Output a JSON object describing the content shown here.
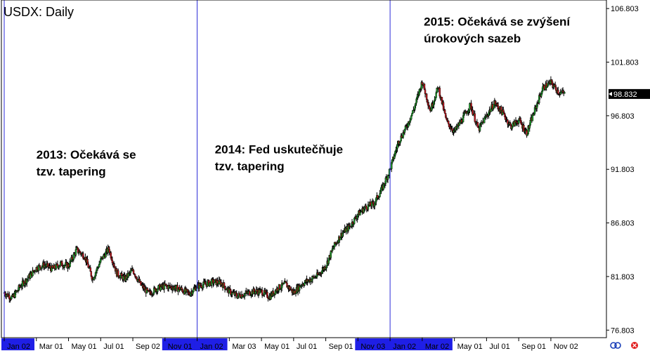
{
  "chart_data": {
    "type": "candlestick",
    "title": "USDX: Daily",
    "y_ticks": [
      "106.803",
      "101.803",
      "96.803",
      "91.803",
      "86.803",
      "81.803",
      "76.803"
    ],
    "y_values": [
      106.803,
      101.803,
      96.803,
      91.803,
      86.803,
      81.803,
      76.803
    ],
    "ylim": [
      76.1,
      107.6
    ],
    "x_ticks": [
      "Jan 02",
      "Mar 01",
      "May 01",
      "Jul 01",
      "Sep 02",
      "Nov 01",
      "Jan 02",
      "Mar 03",
      "May 01",
      "Jul 01",
      "Sep 01",
      "Nov 03",
      "Jan 02",
      "Mar 02",
      "May 01",
      "Jul 01",
      "Sep 01",
      "Nov 02"
    ],
    "x_tick_highlighted": [
      true,
      false,
      false,
      false,
      false,
      true,
      true,
      false,
      false,
      false,
      false,
      true,
      true,
      true,
      false,
      false,
      false,
      false
    ],
    "x_tick_positions_months": [
      0,
      2,
      4,
      6,
      8,
      10,
      12,
      14,
      16,
      18,
      20,
      22,
      24,
      26,
      28,
      30,
      32,
      34
    ],
    "xlim_months": [
      0,
      35.8
    ],
    "period_dividers": [
      "2013",
      "2014",
      "2015"
    ],
    "divider_months": [
      0,
      12,
      24
    ],
    "current_price": "98.832",
    "current_value": 98.832,
    "annotations": [
      {
        "line1": "2013: Očekává se",
        "line2": "tzv. tapering",
        "anchor_month": 2.0,
        "anchor_value": 92.8
      },
      {
        "line1": "2014: Fed uskutečňuje",
        "line2": "tzv. tapering",
        "anchor_month": 13.1,
        "anchor_value": 93.3
      },
      {
        "line1": "2015: Očekává se zvýšení",
        "line2": "úrokových sazeb",
        "anchor_month": 26.1,
        "anchor_value": 105.2
      }
    ],
    "series": [
      {
        "values": [
          [
            0,
            80.3
          ],
          [
            0.5,
            79.8
          ],
          [
            1,
            80.9
          ],
          [
            1.5,
            81.7
          ],
          [
            2,
            82.6
          ],
          [
            2.5,
            82.9
          ],
          [
            3,
            82.5
          ],
          [
            3.5,
            83.0
          ],
          [
            4,
            82.8
          ],
          [
            4.5,
            84.3
          ],
          [
            5,
            83.7
          ],
          [
            5.5,
            81.6
          ],
          [
            6,
            83.3
          ],
          [
            6.5,
            84.4
          ],
          [
            7,
            82.1
          ],
          [
            7.5,
            81.6
          ],
          [
            8,
            82.4
          ],
          [
            8.5,
            81.0
          ],
          [
            9,
            80.2
          ],
          [
            9.5,
            80.7
          ],
          [
            10,
            80.9
          ],
          [
            10.5,
            80.8
          ],
          [
            11,
            80.6
          ],
          [
            11.5,
            80.2
          ],
          [
            12,
            80.9
          ],
          [
            12.5,
            81.1
          ],
          [
            13,
            81.3
          ],
          [
            13.5,
            81.2
          ],
          [
            14,
            80.4
          ],
          [
            14.5,
            80.0
          ],
          [
            15,
            80.2
          ],
          [
            15.5,
            80.4
          ],
          [
            16,
            80.4
          ],
          [
            16.5,
            79.9
          ],
          [
            17,
            80.7
          ],
          [
            17.5,
            81.1
          ],
          [
            18,
            80.3
          ],
          [
            18.5,
            81.1
          ],
          [
            19,
            81.5
          ],
          [
            19.5,
            81.9
          ],
          [
            20,
            82.8
          ],
          [
            20.5,
            84.6
          ],
          [
            21,
            85.8
          ],
          [
            21.5,
            86.5
          ],
          [
            22,
            87.6
          ],
          [
            22.5,
            88.3
          ],
          [
            23,
            88.6
          ],
          [
            23.5,
            90.0
          ],
          [
            24,
            91.8
          ],
          [
            24.5,
            94.3
          ],
          [
            25,
            95.7
          ],
          [
            25.5,
            97.5
          ],
          [
            26,
            100.0
          ],
          [
            26.5,
            97.3
          ],
          [
            27,
            99.5
          ],
          [
            27.5,
            96.3
          ],
          [
            28,
            95.3
          ],
          [
            28.5,
            96.5
          ],
          [
            29,
            97.8
          ],
          [
            29.5,
            95.5
          ],
          [
            30,
            96.8
          ],
          [
            30.5,
            98.0
          ],
          [
            31,
            97.1
          ],
          [
            31.5,
            95.8
          ],
          [
            32,
            96.4
          ],
          [
            32.5,
            95.2
          ],
          [
            33,
            97.3
          ],
          [
            33.5,
            99.4
          ],
          [
            34,
            99.9
          ],
          [
            34.5,
            99.0
          ],
          [
            34.9,
            98.832
          ]
        ]
      }
    ]
  }
}
